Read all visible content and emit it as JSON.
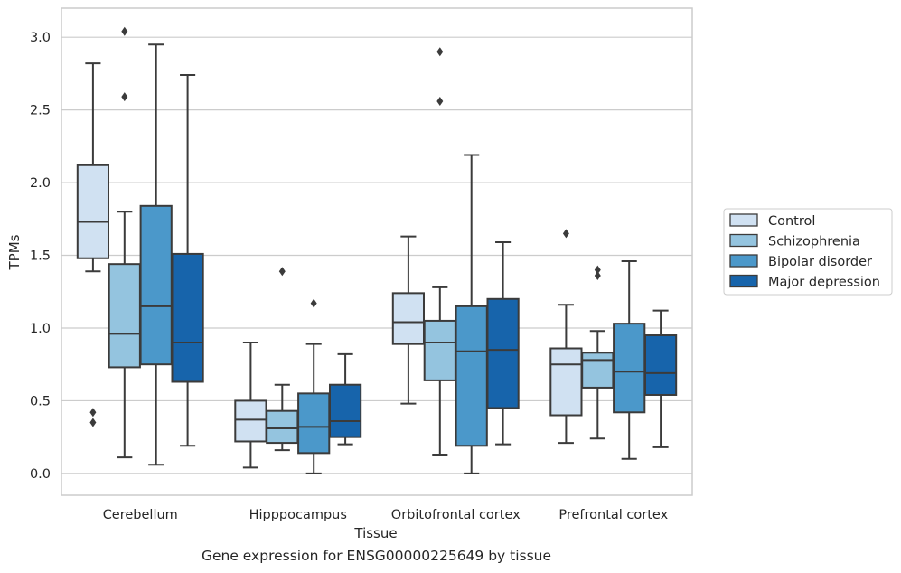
{
  "caption": "Gene expression for ENSG00000225649 by tissue",
  "colors": {
    "series": [
      "#d0e1f2",
      "#94c4df",
      "#4b98ca",
      "#1764ab"
    ],
    "grid": "#cccccc",
    "frame": "#cccccc",
    "box_line": "#3b3b3b",
    "flier": "#3b3b3b"
  },
  "chart_data": {
    "type": "box",
    "xlabel": "Tissue",
    "ylabel": "TPMs",
    "ylim": [
      -0.15,
      3.2
    ],
    "yticks": [
      "0.0",
      "0.5",
      "1.0",
      "1.5",
      "2.0",
      "2.5",
      "3.0"
    ],
    "grid": "horizontal",
    "legend_position": "right",
    "categories": [
      "Cerebellum",
      "Hipppocampus",
      "Orbitofrontal cortex",
      "Prefrontal cortex"
    ],
    "series": [
      {
        "name": "Control",
        "boxes": [
          {
            "whislo": 1.39,
            "q1": 1.48,
            "med": 1.73,
            "q3": 2.12,
            "whishi": 2.82,
            "fliers": [
              0.42,
              0.35
            ]
          },
          {
            "whislo": 0.04,
            "q1": 0.22,
            "med": 0.37,
            "q3": 0.5,
            "whishi": 0.9,
            "fliers": []
          },
          {
            "whislo": 0.48,
            "q1": 0.89,
            "med": 1.04,
            "q3": 1.24,
            "whishi": 1.63,
            "fliers": []
          },
          {
            "whislo": 0.21,
            "q1": 0.4,
            "med": 0.75,
            "q3": 0.86,
            "whishi": 1.16,
            "fliers": [
              1.65
            ]
          }
        ]
      },
      {
        "name": "Schizophrenia",
        "boxes": [
          {
            "whislo": 0.11,
            "q1": 0.73,
            "med": 0.96,
            "q3": 1.44,
            "whishi": 1.8,
            "fliers": [
              3.04,
              2.59
            ]
          },
          {
            "whislo": 0.16,
            "q1": 0.21,
            "med": 0.31,
            "q3": 0.43,
            "whishi": 0.61,
            "fliers": [
              1.39
            ]
          },
          {
            "whislo": 0.13,
            "q1": 0.64,
            "med": 0.9,
            "q3": 1.05,
            "whishi": 1.28,
            "fliers": [
              2.9,
              2.56
            ]
          },
          {
            "whislo": 0.24,
            "q1": 0.59,
            "med": 0.78,
            "q3": 0.83,
            "whishi": 0.98,
            "fliers": [
              1.4,
              1.36
            ]
          }
        ]
      },
      {
        "name": "Bipolar disorder",
        "boxes": [
          {
            "whislo": 0.06,
            "q1": 0.75,
            "med": 1.15,
            "q3": 1.84,
            "whishi": 2.95,
            "fliers": []
          },
          {
            "whislo": 0.0,
            "q1": 0.14,
            "med": 0.32,
            "q3": 0.55,
            "whishi": 0.89,
            "fliers": [
              1.17
            ]
          },
          {
            "whislo": 0.0,
            "q1": 0.19,
            "med": 0.84,
            "q3": 1.15,
            "whishi": 2.19,
            "fliers": []
          },
          {
            "whislo": 0.1,
            "q1": 0.42,
            "med": 0.7,
            "q3": 1.03,
            "whishi": 1.46,
            "fliers": []
          }
        ]
      },
      {
        "name": "Major depression",
        "boxes": [
          {
            "whislo": 0.19,
            "q1": 0.63,
            "med": 0.9,
            "q3": 1.51,
            "whishi": 2.74,
            "fliers": []
          },
          {
            "whislo": 0.2,
            "q1": 0.25,
            "med": 0.36,
            "q3": 0.61,
            "whishi": 0.82,
            "fliers": []
          },
          {
            "whislo": 0.2,
            "q1": 0.45,
            "med": 0.85,
            "q3": 1.2,
            "whishi": 1.59,
            "fliers": []
          },
          {
            "whislo": 0.18,
            "q1": 0.54,
            "med": 0.69,
            "q3": 0.95,
            "whishi": 1.12,
            "fliers": []
          }
        ]
      }
    ]
  }
}
